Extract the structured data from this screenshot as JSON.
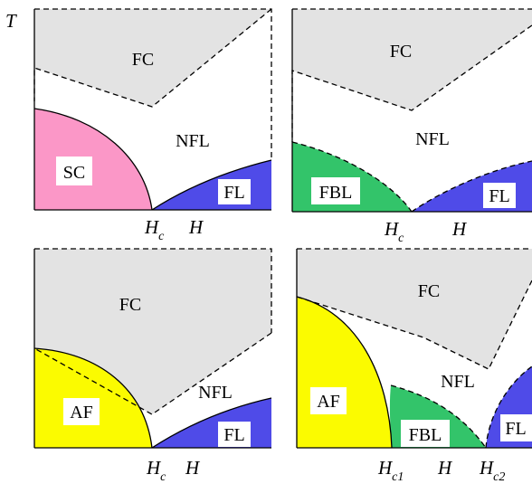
{
  "axis_symbol_t": "T",
  "colors": {
    "fc": "#e3e3e3",
    "sc": "#fb97c7",
    "fbl": "#33c46a",
    "fl": "#4f4be8",
    "af": "#fbfb00",
    "label_bg": "#ffffff",
    "line": "#000000"
  },
  "panels": [
    {
      "id": "a",
      "regions": [
        "FC",
        "NFL",
        "SC",
        "FL"
      ],
      "axis": {
        "critical_main": "H",
        "critical_sub": "c",
        "field": "H"
      }
    },
    {
      "id": "b",
      "regions": [
        "FC",
        "NFL",
        "FBL",
        "FL"
      ],
      "axis": {
        "critical_main": "H",
        "critical_sub": "c",
        "field": "H"
      }
    },
    {
      "id": "c",
      "regions": [
        "FC",
        "NFL",
        "AF",
        "FL"
      ],
      "axis": {
        "critical_main": "H",
        "critical_sub": "c",
        "field": "H"
      }
    },
    {
      "id": "d",
      "regions": [
        "FC",
        "NFL",
        "AF",
        "FBL",
        "FL"
      ],
      "axis": {
        "critical1_main": "H",
        "critical1_sub": "c1",
        "field": "H",
        "critical2_main": "H",
        "critical2_sub": "c2"
      }
    }
  ]
}
